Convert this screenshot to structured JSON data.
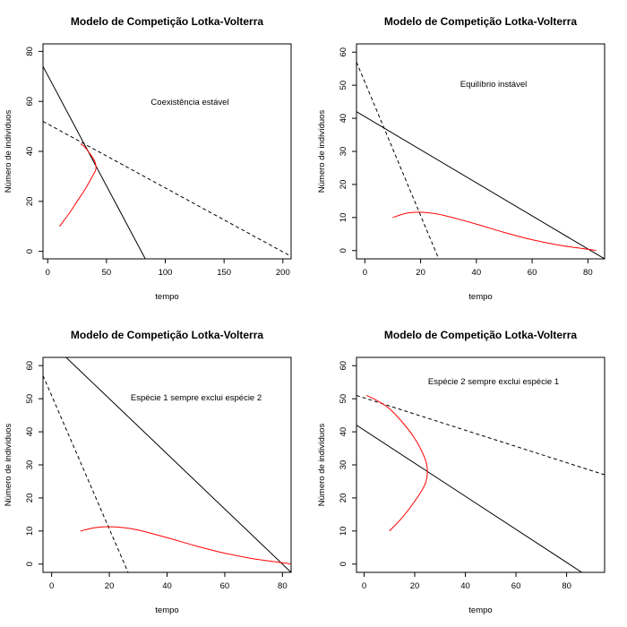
{
  "chart_data": [
    {
      "type": "line",
      "title": "Modelo de Competição Lotka-Volterra",
      "xlabel": "tempo",
      "ylabel": "Número de indivíduos",
      "annotation": "Coexistência estável",
      "xlim": [
        -4,
        207
      ],
      "ylim": [
        -3,
        83
      ],
      "xticks": [
        0,
        50,
        100,
        150,
        200
      ],
      "yticks": [
        0,
        20,
        40,
        60,
        80
      ],
      "lines": [
        {
          "style": "solid",
          "color": "#000000",
          "x": [
            -4,
            83
          ],
          "y": [
            74,
            -3
          ]
        },
        {
          "style": "dashed",
          "color": "#000000",
          "x": [
            -4,
            207
          ],
          "y": [
            52,
            -2
          ]
        }
      ],
      "trajectory": {
        "color": "#ff0000",
        "x": [
          10,
          18,
          25,
          32,
          38,
          41,
          40,
          36,
          31,
          28
        ],
        "y": [
          10,
          15,
          20,
          25,
          30,
          33,
          36,
          39,
          42,
          43
        ]
      }
    },
    {
      "type": "line",
      "title": "Modelo de Competição Lotka-Volterra",
      "xlabel": "tempo",
      "ylabel": "Número de indivíduos",
      "annotation": "Equilíbrio instável",
      "xlim": [
        -3,
        86
      ],
      "ylim": [
        -2.5,
        62.5
      ],
      "xticks": [
        0,
        20,
        40,
        60,
        80
      ],
      "yticks": [
        0,
        10,
        20,
        30,
        40,
        50,
        60
      ],
      "lines": [
        {
          "style": "solid",
          "color": "#000000",
          "x": [
            -3,
            86
          ],
          "y": [
            42,
            -2.5
          ]
        },
        {
          "style": "dashed",
          "color": "#000000",
          "x": [
            -3,
            26.5
          ],
          "y": [
            57,
            -2.5
          ]
        }
      ],
      "trajectory": {
        "color": "#ff0000",
        "x": [
          10,
          15,
          20,
          25,
          30,
          40,
          50,
          60,
          70,
          80,
          83
        ],
        "y": [
          10,
          11.3,
          11.6,
          11.2,
          10.3,
          8,
          5.5,
          3.3,
          1.6,
          0.4,
          0
        ]
      }
    },
    {
      "type": "line",
      "title": "Modelo de Competição Lotka-Volterra",
      "xlabel": "tempo",
      "ylabel": "Número de indivíduos",
      "annotation": "Espécie 1 sempre exclui espécie 2",
      "xlim": [
        -3,
        83
      ],
      "ylim": [
        -2.5,
        62.5
      ],
      "xticks": [
        0,
        20,
        40,
        60,
        80
      ],
      "yticks": [
        0,
        10,
        20,
        30,
        40,
        50,
        60
      ],
      "lines": [
        {
          "style": "solid",
          "color": "#000000",
          "x": [
            5,
            83
          ],
          "y": [
            62.5,
            -2.5
          ]
        },
        {
          "style": "dashed",
          "color": "#000000",
          "x": [
            -3,
            26.5
          ],
          "y": [
            57,
            -2.5
          ]
        }
      ],
      "trajectory": {
        "color": "#ff0000",
        "x": [
          10,
          15,
          20,
          25,
          30,
          40,
          50,
          60,
          70,
          80,
          83
        ],
        "y": [
          10,
          11,
          11.3,
          11,
          10.3,
          8,
          5.5,
          3.3,
          1.6,
          0.4,
          0
        ]
      }
    },
    {
      "type": "line",
      "title": "Modelo de Competição Lotka-Volterra",
      "xlabel": "tempo",
      "ylabel": "Número de indivíduos",
      "annotation": "Espécie 2 sempre exclui espécie 1",
      "xlim": [
        -3,
        95
      ],
      "ylim": [
        -2.5,
        62.5
      ],
      "xticks": [
        0,
        20,
        40,
        60,
        80
      ],
      "yticks": [
        0,
        10,
        20,
        30,
        40,
        50,
        60
      ],
      "lines": [
        {
          "style": "solid",
          "color": "#000000",
          "x": [
            -3,
            86
          ],
          "y": [
            42,
            -2.5
          ]
        },
        {
          "style": "dashed",
          "color": "#000000",
          "x": [
            -3,
            95
          ],
          "y": [
            51,
            27
          ]
        }
      ],
      "trajectory": {
        "color": "#ff0000",
        "x": [
          10,
          15,
          20,
          24,
          25,
          24,
          20,
          15,
          10,
          5,
          1
        ],
        "y": [
          10,
          14,
          19,
          24,
          28,
          32,
          38,
          43,
          47,
          49.5,
          51
        ]
      }
    }
  ]
}
